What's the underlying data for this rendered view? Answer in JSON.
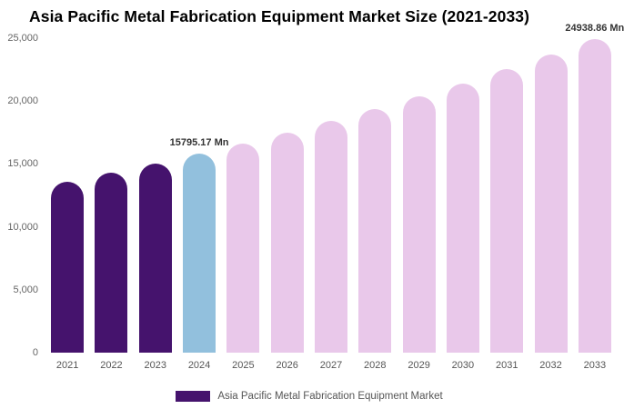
{
  "chart_data": {
    "type": "bar",
    "title": "Asia Pacific Metal Fabrication Equipment Market Size (2021-2033)",
    "categories": [
      "2021",
      "2022",
      "2023",
      "2024",
      "2025",
      "2026",
      "2027",
      "2028",
      "2029",
      "2030",
      "2031",
      "2032",
      "2033"
    ],
    "values": [
      13570,
      14280,
      15020,
      15795.17,
      16620,
      17480,
      18390,
      19350,
      20350,
      21410,
      22530,
      23700,
      24938.86
    ],
    "bar_colors": [
      "#45136d",
      "#45136d",
      "#45136d",
      "#92c0dd",
      "#e9c8ea",
      "#e9c8ea",
      "#e9c8ea",
      "#e9c8ea",
      "#e9c8ea",
      "#e9c8ea",
      "#e9c8ea",
      "#e9c8ea",
      "#e9c8ea"
    ],
    "ylim": [
      0,
      25000
    ],
    "yticks": [
      0,
      5000,
      10000,
      15000,
      20000,
      25000
    ],
    "ytick_labels": [
      "0",
      "5,000",
      "10,000",
      "15,000",
      "20,000",
      "25,000"
    ],
    "grid": false,
    "legend_position": "bottom",
    "legend": "Asia Pacific Metal Fabrication Equipment Market",
    "legend_color": "#45136d",
    "annotations": [
      {
        "index": 3,
        "text": "15795.17 Mn"
      },
      {
        "index": 12,
        "text": "24938.86 Mn"
      }
    ]
  }
}
